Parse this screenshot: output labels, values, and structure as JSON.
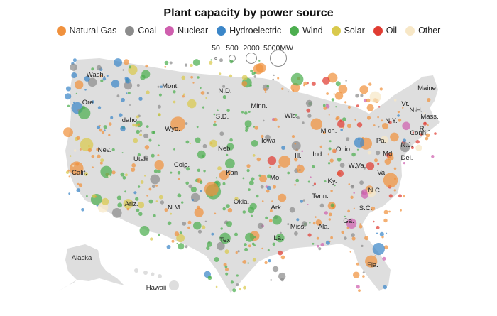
{
  "title": "Plant capacity by power source",
  "legend": [
    {
      "name": "Natural Gas",
      "color": "#f0913d"
    },
    {
      "name": "Coal",
      "color": "#8c8c8c"
    },
    {
      "name": "Nuclear",
      "color": "#cf5fae"
    },
    {
      "name": "Hydroelectric",
      "color": "#3b86c8"
    },
    {
      "name": "Wind",
      "color": "#4cae4f"
    },
    {
      "name": "Solar",
      "color": "#d9c94c"
    },
    {
      "name": "Oil",
      "color": "#e03c32"
    },
    {
      "name": "Other",
      "color": "#f7e7c6"
    }
  ],
  "size_legend": {
    "labels": [
      "50",
      "500",
      "2000",
      "5000MW"
    ],
    "values_mw": [
      50,
      500,
      2000,
      5000
    ]
  },
  "state_labels": [
    "Wash.",
    "Ore.",
    "Calif.",
    "Nev.",
    "Idaho",
    "Mont.",
    "Wyo.",
    "Utah",
    "Colo.",
    "Ariz.",
    "N.M.",
    "N.D.",
    "S.D.",
    "Neb.",
    "Kan.",
    "Okla.",
    "Tex.",
    "Minn.",
    "Iowa",
    "Mo.",
    "Ark.",
    "La.",
    "Wis.",
    "Ill.",
    "Mich.",
    "Ind.",
    "Ohio",
    "Ky.",
    "Tenn.",
    "Miss.",
    "Ala.",
    "Ga.",
    "Fla.",
    "S.C.",
    "N.C.",
    "Va.",
    "W.Va.",
    "Pa.",
    "N.Y.",
    "Md.",
    "Del.",
    "N.J.",
    "Conn.",
    "R.I.",
    "Mass.",
    "N.H.",
    "Vt.",
    "Maine",
    "Alaska",
    "Hawaii"
  ]
}
